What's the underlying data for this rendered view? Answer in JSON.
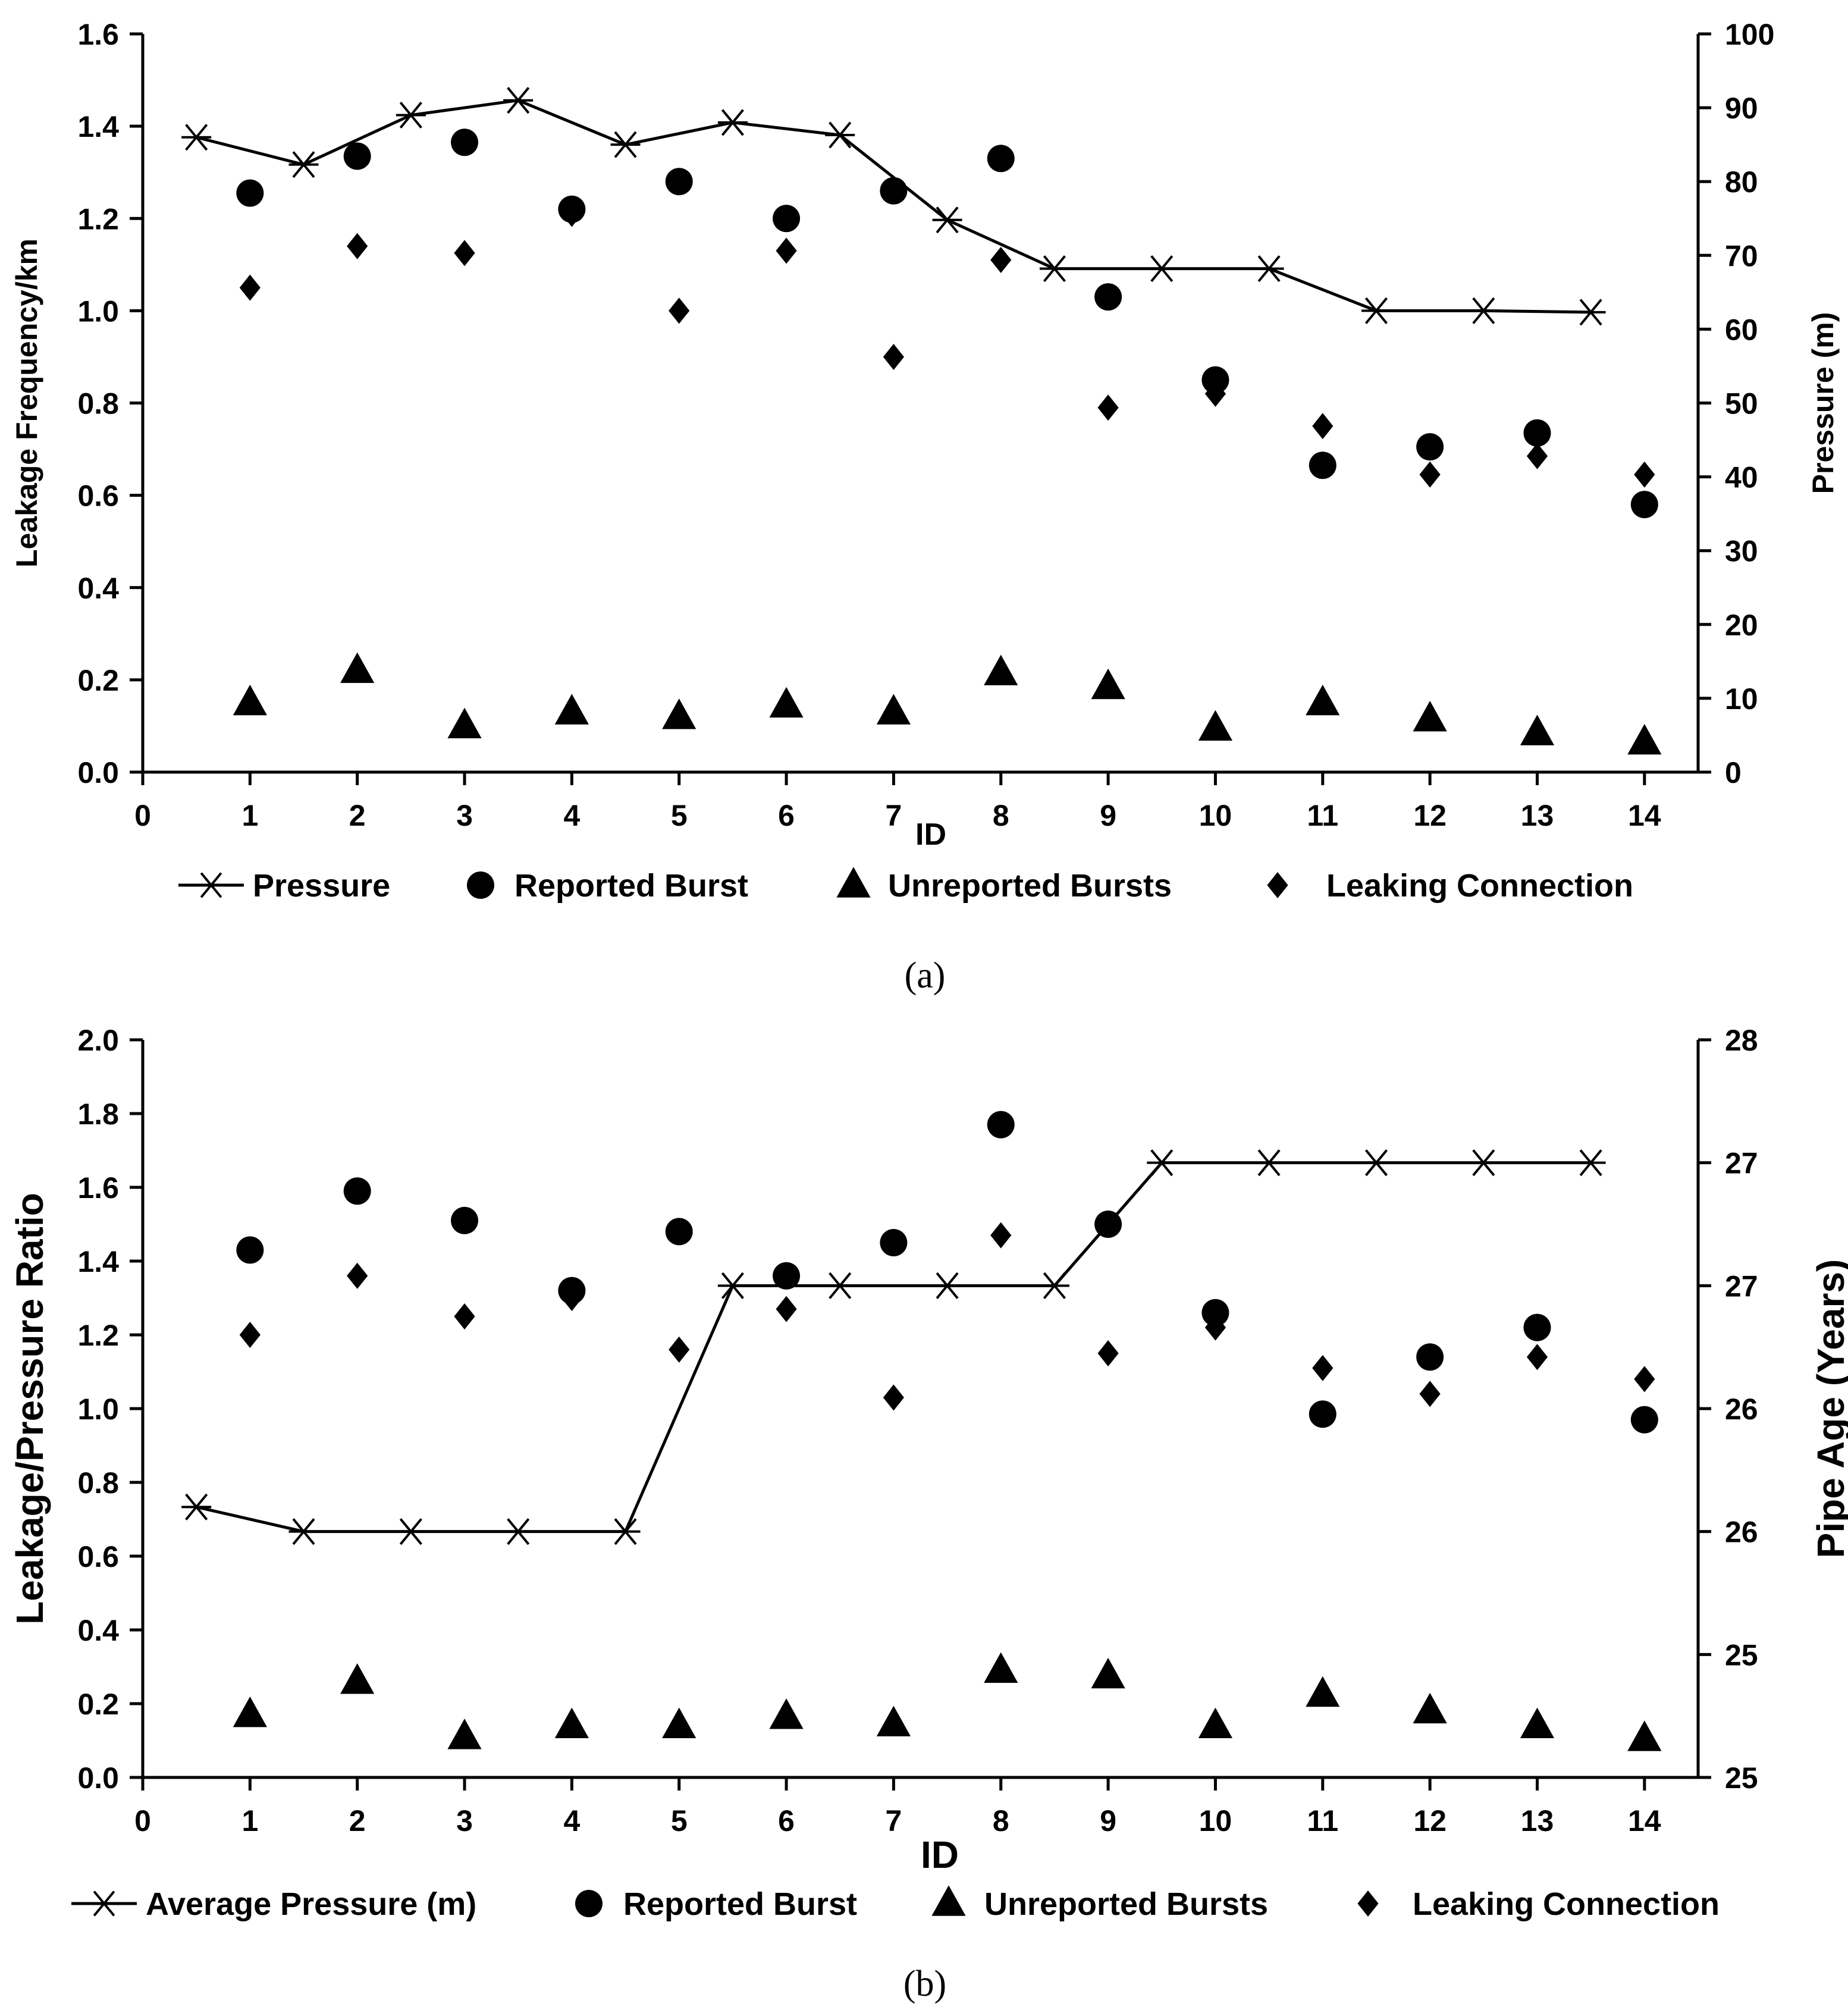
{
  "chart_data": [
    {
      "type": "scatter",
      "panel_label": "(a)",
      "xlabel": "ID",
      "ylabel": "Leakage Frequency/km",
      "y2label": "Pressure (m)",
      "x_ticks": [
        "0",
        "1",
        "2",
        "3",
        "4",
        "5",
        "6",
        "7",
        "8",
        "9",
        "10",
        "11",
        "12",
        "13",
        "14"
      ],
      "xlim": [
        0,
        14.5
      ],
      "ylim": [
        0,
        1.6
      ],
      "y2lim": [
        0,
        100
      ],
      "y_ticks": [
        "0.0",
        "0.2",
        "0.4",
        "0.6",
        "0.8",
        "1.0",
        "1.2",
        "1.4",
        "1.6"
      ],
      "y2_ticks": [
        "0",
        "10",
        "20",
        "30",
        "40",
        "50",
        "60",
        "70",
        "80",
        "90",
        "100"
      ],
      "legend": [
        "Pressure",
        "Reported Burst",
        "Unreported Bursts",
        "Leaking Connection"
      ],
      "line_series": {
        "name": "Pressure",
        "axis": "right",
        "marker": "asterisk",
        "x": [
          0.5,
          1.5,
          2.5,
          3.5,
          4.5,
          5.5,
          6.5,
          7.5,
          8.5,
          9.5,
          10.5,
          11.5,
          12.5,
          13.5
        ],
        "y": [
          86,
          82.3,
          89,
          91,
          85,
          88,
          86.3,
          74.8,
          68.2,
          68.2,
          68.2,
          62.5,
          62.5,
          62.3
        ]
      },
      "series": [
        {
          "name": "Reported Burst",
          "marker": "circle",
          "axis": "left",
          "x": [
            1,
            2,
            3,
            4,
            5,
            6,
            7,
            8,
            9,
            10,
            11,
            12,
            13,
            14
          ],
          "y": [
            1.255,
            1.335,
            1.365,
            1.22,
            1.28,
            1.2,
            1.26,
            1.33,
            1.03,
            0.85,
            0.665,
            0.705,
            0.735,
            0.58
          ]
        },
        {
          "name": "Unreported Bursts",
          "marker": "triangle",
          "axis": "left",
          "x": [
            1,
            2,
            3,
            4,
            5,
            6,
            7,
            8,
            9,
            10,
            11,
            12,
            13,
            14
          ],
          "y": [
            0.15,
            0.22,
            0.1,
            0.13,
            0.12,
            0.145,
            0.13,
            0.215,
            0.185,
            0.095,
            0.15,
            0.115,
            0.085,
            0.065
          ]
        },
        {
          "name": "Leaking Connection",
          "marker": "diamond",
          "axis": "left",
          "x": [
            1,
            2,
            3,
            4,
            5,
            6,
            7,
            8,
            9,
            10,
            11,
            12,
            13,
            14
          ],
          "y": [
            1.05,
            1.14,
            1.125,
            1.21,
            1.0,
            1.13,
            0.9,
            1.11,
            0.79,
            0.82,
            0.75,
            0.645,
            0.685,
            0.645
          ]
        }
      ]
    },
    {
      "type": "scatter",
      "panel_label": "(b)",
      "xlabel": "ID",
      "ylabel": "Leakage/Pressure Ratio",
      "y2label": "Pipe Age (Years)",
      "x_ticks": [
        "0",
        "1",
        "2",
        "3",
        "4",
        "5",
        "6",
        "7",
        "8",
        "9",
        "10",
        "11",
        "12",
        "13",
        "14"
      ],
      "xlim": [
        0,
        14.5
      ],
      "ylim": [
        0,
        2.0
      ],
      "y2lim": [
        25,
        28
      ],
      "y_ticks": [
        "0.0",
        "0.2",
        "0.4",
        "0.6",
        "0.8",
        "1.0",
        "1.2",
        "1.4",
        "1.6",
        "1.8",
        "2.0"
      ],
      "y2_ticks": [
        "25",
        "25",
        "26",
        "26",
        "27",
        "27",
        "28"
      ],
      "legend": [
        "Average Pressure (m)",
        "Reported Burst",
        "Unreported Bursts",
        "Leaking Connection"
      ],
      "line_series": {
        "name": "Average Pressure (m)",
        "axis": "right",
        "marker": "asterisk",
        "x": [
          0.5,
          1.5,
          2.5,
          3.5,
          4.5,
          5.5,
          6.5,
          7.5,
          8.5,
          9.5,
          10.5,
          11.5,
          12.5,
          13.5
        ],
        "y": [
          26.1,
          26.0,
          26.0,
          26.0,
          26.0,
          27.0,
          27.0,
          27.0,
          27.0,
          27.5,
          27.5,
          27.5,
          27.5,
          27.5
        ]
      },
      "series": [
        {
          "name": "Reported Burst",
          "marker": "circle",
          "axis": "left",
          "x": [
            1,
            2,
            3,
            4,
            5,
            6,
            7,
            8,
            9,
            10,
            11,
            12,
            13,
            14
          ],
          "y": [
            1.43,
            1.59,
            1.51,
            1.32,
            1.48,
            1.36,
            1.45,
            1.77,
            1.5,
            1.26,
            0.985,
            1.14,
            1.22,
            0.97
          ]
        },
        {
          "name": "Unreported Bursts",
          "marker": "triangle",
          "axis": "left",
          "x": [
            1,
            2,
            3,
            4,
            5,
            6,
            7,
            8,
            9,
            10,
            11,
            12,
            13,
            14
          ],
          "y": [
            0.17,
            0.26,
            0.11,
            0.14,
            0.14,
            0.165,
            0.145,
            0.29,
            0.275,
            0.14,
            0.225,
            0.18,
            0.14,
            0.105
          ]
        },
        {
          "name": "Leaking Connection",
          "marker": "diamond",
          "axis": "left",
          "x": [
            1,
            2,
            3,
            4,
            5,
            6,
            7,
            8,
            9,
            10,
            11,
            12,
            13,
            14
          ],
          "y": [
            1.2,
            1.36,
            1.25,
            1.3,
            1.16,
            1.27,
            1.03,
            1.47,
            1.15,
            1.22,
            1.11,
            1.04,
            1.14,
            1.08
          ]
        }
      ]
    }
  ]
}
